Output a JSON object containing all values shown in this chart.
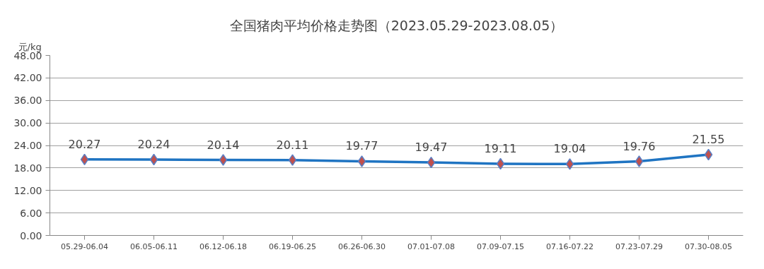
{
  "chart_data": {
    "type": "line",
    "title": "全国猪肉平均价格走势图（2023.05.29-2023.08.05）",
    "ylabel": "元/kg",
    "categories": [
      "05.29-06.04",
      "06.05-06.11",
      "06.12-06.18",
      "06.19-06.25",
      "06.26-06.30",
      "07.01-07.08",
      "07.09-07.15",
      "07.16-07.22",
      "07.23-07.29",
      "07.30-08.05"
    ],
    "series": [
      {
        "color": "#1f74c2",
        "colors": [
          "#c0504d",
          "#c0504d",
          "#c0504d",
          "#c0504d",
          "#c0504d",
          "#c0504d",
          "#c0504d",
          "#c0504d",
          "#c0504d",
          "#c0504d"
        ],
        "values": [
          20.27,
          20.24,
          20.14,
          20.11,
          19.77,
          19.47,
          19.11,
          19.04,
          19.76,
          21.55
        ]
      }
    ],
    "ylim": [
      0,
      48
    ],
    "yticks": [
      {
        "value": 0,
        "label": "0.00"
      },
      {
        "value": 6,
        "label": "6.00"
      },
      {
        "value": 12,
        "label": "12.00"
      },
      {
        "value": 18,
        "label": "18.00"
      },
      {
        "value": 24,
        "label": "24.00"
      },
      {
        "value": 30,
        "label": "30.00"
      },
      {
        "value": 36,
        "label": "36.00"
      },
      {
        "value": 42,
        "label": "42.00"
      },
      {
        "value": 48,
        "label": "48.00"
      }
    ],
    "grid": "y",
    "legend": false,
    "marker": "diamond",
    "line_style": "solid",
    "data_labels": true
  }
}
